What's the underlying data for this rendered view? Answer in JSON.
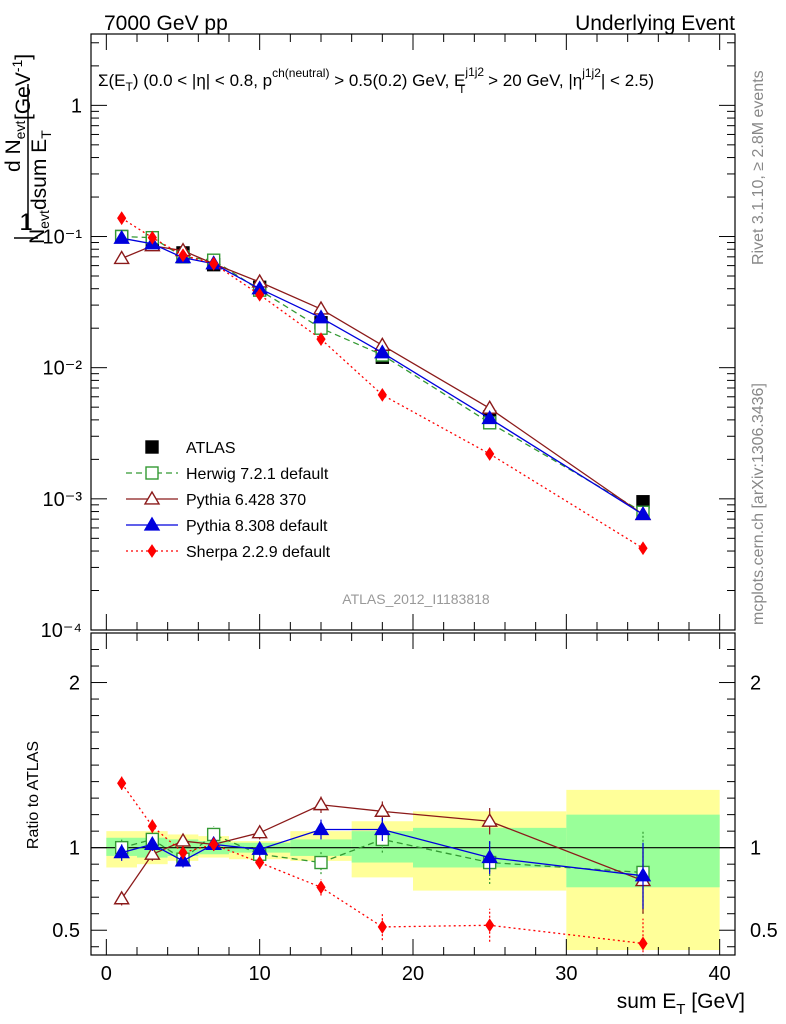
{
  "header": {
    "left": "7000 GeV pp",
    "right": "Underlying Event"
  },
  "side_labels": {
    "rivet": "Rivet 3.1.10, ≥ 2.8M events",
    "mcplots": "mcplots.cern.ch [arXiv:1306.3436]"
  },
  "analysis_id": "ATLAS_2012_I1183818",
  "observable": {
    "sigma": "Σ(E",
    "sub_T": "T",
    "part1": ") (0.0 < |η| < 0.8, p",
    "sup_ch": "ch(neutral)",
    "part2": " > 0.5(0.2) GeV, E",
    "sup_j": "j1j2",
    "sub_j": "T",
    "part3": " > 20 GeV, |η",
    "sup_eta": "j1j2",
    "part4": "| < 2.5)"
  },
  "chart_data": [
    {
      "type": "scatter",
      "panel": "main",
      "log_y": true,
      "ylabel": "1/N_evt dN_evt/dsum E_T [GeV^-1]",
      "xlim": [
        -1,
        41
      ],
      "ylim": [
        0.0001,
        3.5
      ],
      "y_tick_labels": [
        "10⁻⁴",
        "10⁻³",
        "10⁻²",
        "10⁻¹",
        "1"
      ],
      "series": [
        {
          "name": "ATLAS",
          "color": "#000000",
          "marker": "filled-square",
          "x": [
            1,
            3,
            5,
            7,
            10,
            14,
            18,
            25,
            35
          ],
          "y": [
            0.1,
            0.093,
            0.075,
            0.061,
            0.041,
            0.022,
            0.012,
            0.0042,
            0.00095
          ]
        },
        {
          "name": "Herwig 7.2.1 default",
          "color": "#339933",
          "marker": "open-square",
          "line": "dashed",
          "x": [
            1,
            3,
            5,
            7,
            10,
            14,
            18,
            25,
            35
          ],
          "y": [
            0.1,
            0.098,
            0.07,
            0.066,
            0.039,
            0.02,
            0.0125,
            0.0038,
            0.00079
          ]
        },
        {
          "name": "Pythia 6.428 370",
          "color": "#8b1a1a",
          "marker": "open-triangle",
          "line": "solid",
          "x": [
            1,
            3,
            5,
            7,
            10,
            14,
            18,
            25,
            35
          ],
          "y": [
            0.068,
            0.085,
            0.078,
            0.062,
            0.045,
            0.028,
            0.0148,
            0.0049,
            0.00076
          ]
        },
        {
          "name": "Pythia 8.308 default",
          "color": "#0000dd",
          "marker": "filled-triangle",
          "line": "solid",
          "x": [
            1,
            3,
            5,
            7,
            10,
            14,
            18,
            25,
            35
          ],
          "y": [
            0.097,
            0.088,
            0.069,
            0.062,
            0.04,
            0.024,
            0.013,
            0.0041,
            0.00076
          ]
        },
        {
          "name": "Sherpa 2.2.9 default",
          "color": "#ff0000",
          "marker": "filled-diamond",
          "line": "dotted",
          "x": [
            1,
            3,
            5,
            7,
            10,
            14,
            18,
            25,
            35
          ],
          "y": [
            0.138,
            0.098,
            0.072,
            0.062,
            0.036,
            0.0165,
            0.0062,
            0.0022,
            0.00042
          ]
        }
      ]
    },
    {
      "type": "scatter",
      "panel": "ratio",
      "ylabel": "Ratio to ATLAS",
      "xlabel": "sum E_T [GeV]",
      "xlim": [
        -1,
        41
      ],
      "ylim": [
        0.35,
        2.3
      ],
      "x_ticks": [
        0,
        10,
        20,
        30,
        40
      ],
      "y_ticks": [
        0.5,
        1,
        2
      ],
      "reference": 1,
      "bands": {
        "bins": [
          [
            0,
            2
          ],
          [
            2,
            4
          ],
          [
            4,
            6
          ],
          [
            6,
            8
          ],
          [
            8,
            12
          ],
          [
            12,
            16
          ],
          [
            16,
            20
          ],
          [
            20,
            30
          ],
          [
            30,
            40
          ]
        ],
        "inner": [
          [
            0.95,
            1.06
          ],
          [
            0.94,
            1.06
          ],
          [
            0.95,
            1.05
          ],
          [
            0.96,
            1.04
          ],
          [
            0.97,
            1.03
          ],
          [
            0.95,
            1.05
          ],
          [
            0.91,
            1.1
          ],
          [
            0.88,
            1.12
          ],
          [
            0.76,
            1.2
          ]
        ],
        "outer": [
          [
            0.88,
            1.1
          ],
          [
            0.9,
            1.1
          ],
          [
            0.92,
            1.08
          ],
          [
            0.94,
            1.07
          ],
          [
            0.93,
            1.04
          ],
          [
            0.92,
            1.1
          ],
          [
            0.82,
            1.16
          ],
          [
            0.74,
            1.22
          ],
          [
            0.38,
            1.35
          ]
        ]
      },
      "series": [
        {
          "name": "Herwig 7.2.1 default",
          "color": "#339933",
          "marker": "open-square",
          "line": "dashed",
          "x": [
            1,
            3,
            5,
            7,
            10,
            14,
            18,
            25,
            35
          ],
          "y": [
            1.0,
            1.05,
            0.93,
            1.08,
            0.96,
            0.91,
            1.05,
            0.91,
            0.85
          ],
          "err": [
            0.06,
            0.05,
            0.05,
            0.05,
            0.05,
            0.07,
            0.08,
            0.13,
            0.25
          ]
        },
        {
          "name": "Pythia 6.428 370",
          "color": "#8b1a1a",
          "marker": "open-triangle",
          "line": "solid",
          "x": [
            1,
            3,
            5,
            7,
            10,
            14,
            18,
            25,
            35
          ],
          "y": [
            0.69,
            0.96,
            1.04,
            1.02,
            1.09,
            1.26,
            1.22,
            1.16,
            0.8
          ],
          "err": [
            0.04,
            0.04,
            0.04,
            0.04,
            0.04,
            0.05,
            0.06,
            0.08,
            0.2
          ]
        },
        {
          "name": "Pythia 8.308 default",
          "color": "#0000dd",
          "marker": "filled-triangle",
          "line": "solid",
          "x": [
            1,
            3,
            5,
            7,
            10,
            14,
            18,
            25,
            35
          ],
          "y": [
            0.97,
            1.02,
            0.92,
            1.02,
            0.99,
            1.11,
            1.11,
            0.94,
            0.83
          ],
          "err": [
            0.05,
            0.04,
            0.04,
            0.04,
            0.04,
            0.06,
            0.07,
            0.1,
            0.2
          ]
        },
        {
          "name": "Sherpa 2.2.9 default",
          "color": "#ff0000",
          "marker": "filled-diamond",
          "line": "dotted",
          "x": [
            1,
            3,
            5,
            7,
            10,
            14,
            18,
            25,
            35
          ],
          "y": [
            1.39,
            1.13,
            0.97,
            1.02,
            0.91,
            0.76,
            0.52,
            0.53,
            0.42
          ],
          "err": [
            0.04,
            0.04,
            0.04,
            0.04,
            0.04,
            0.05,
            0.08,
            0.1,
            0.15
          ]
        }
      ]
    }
  ]
}
